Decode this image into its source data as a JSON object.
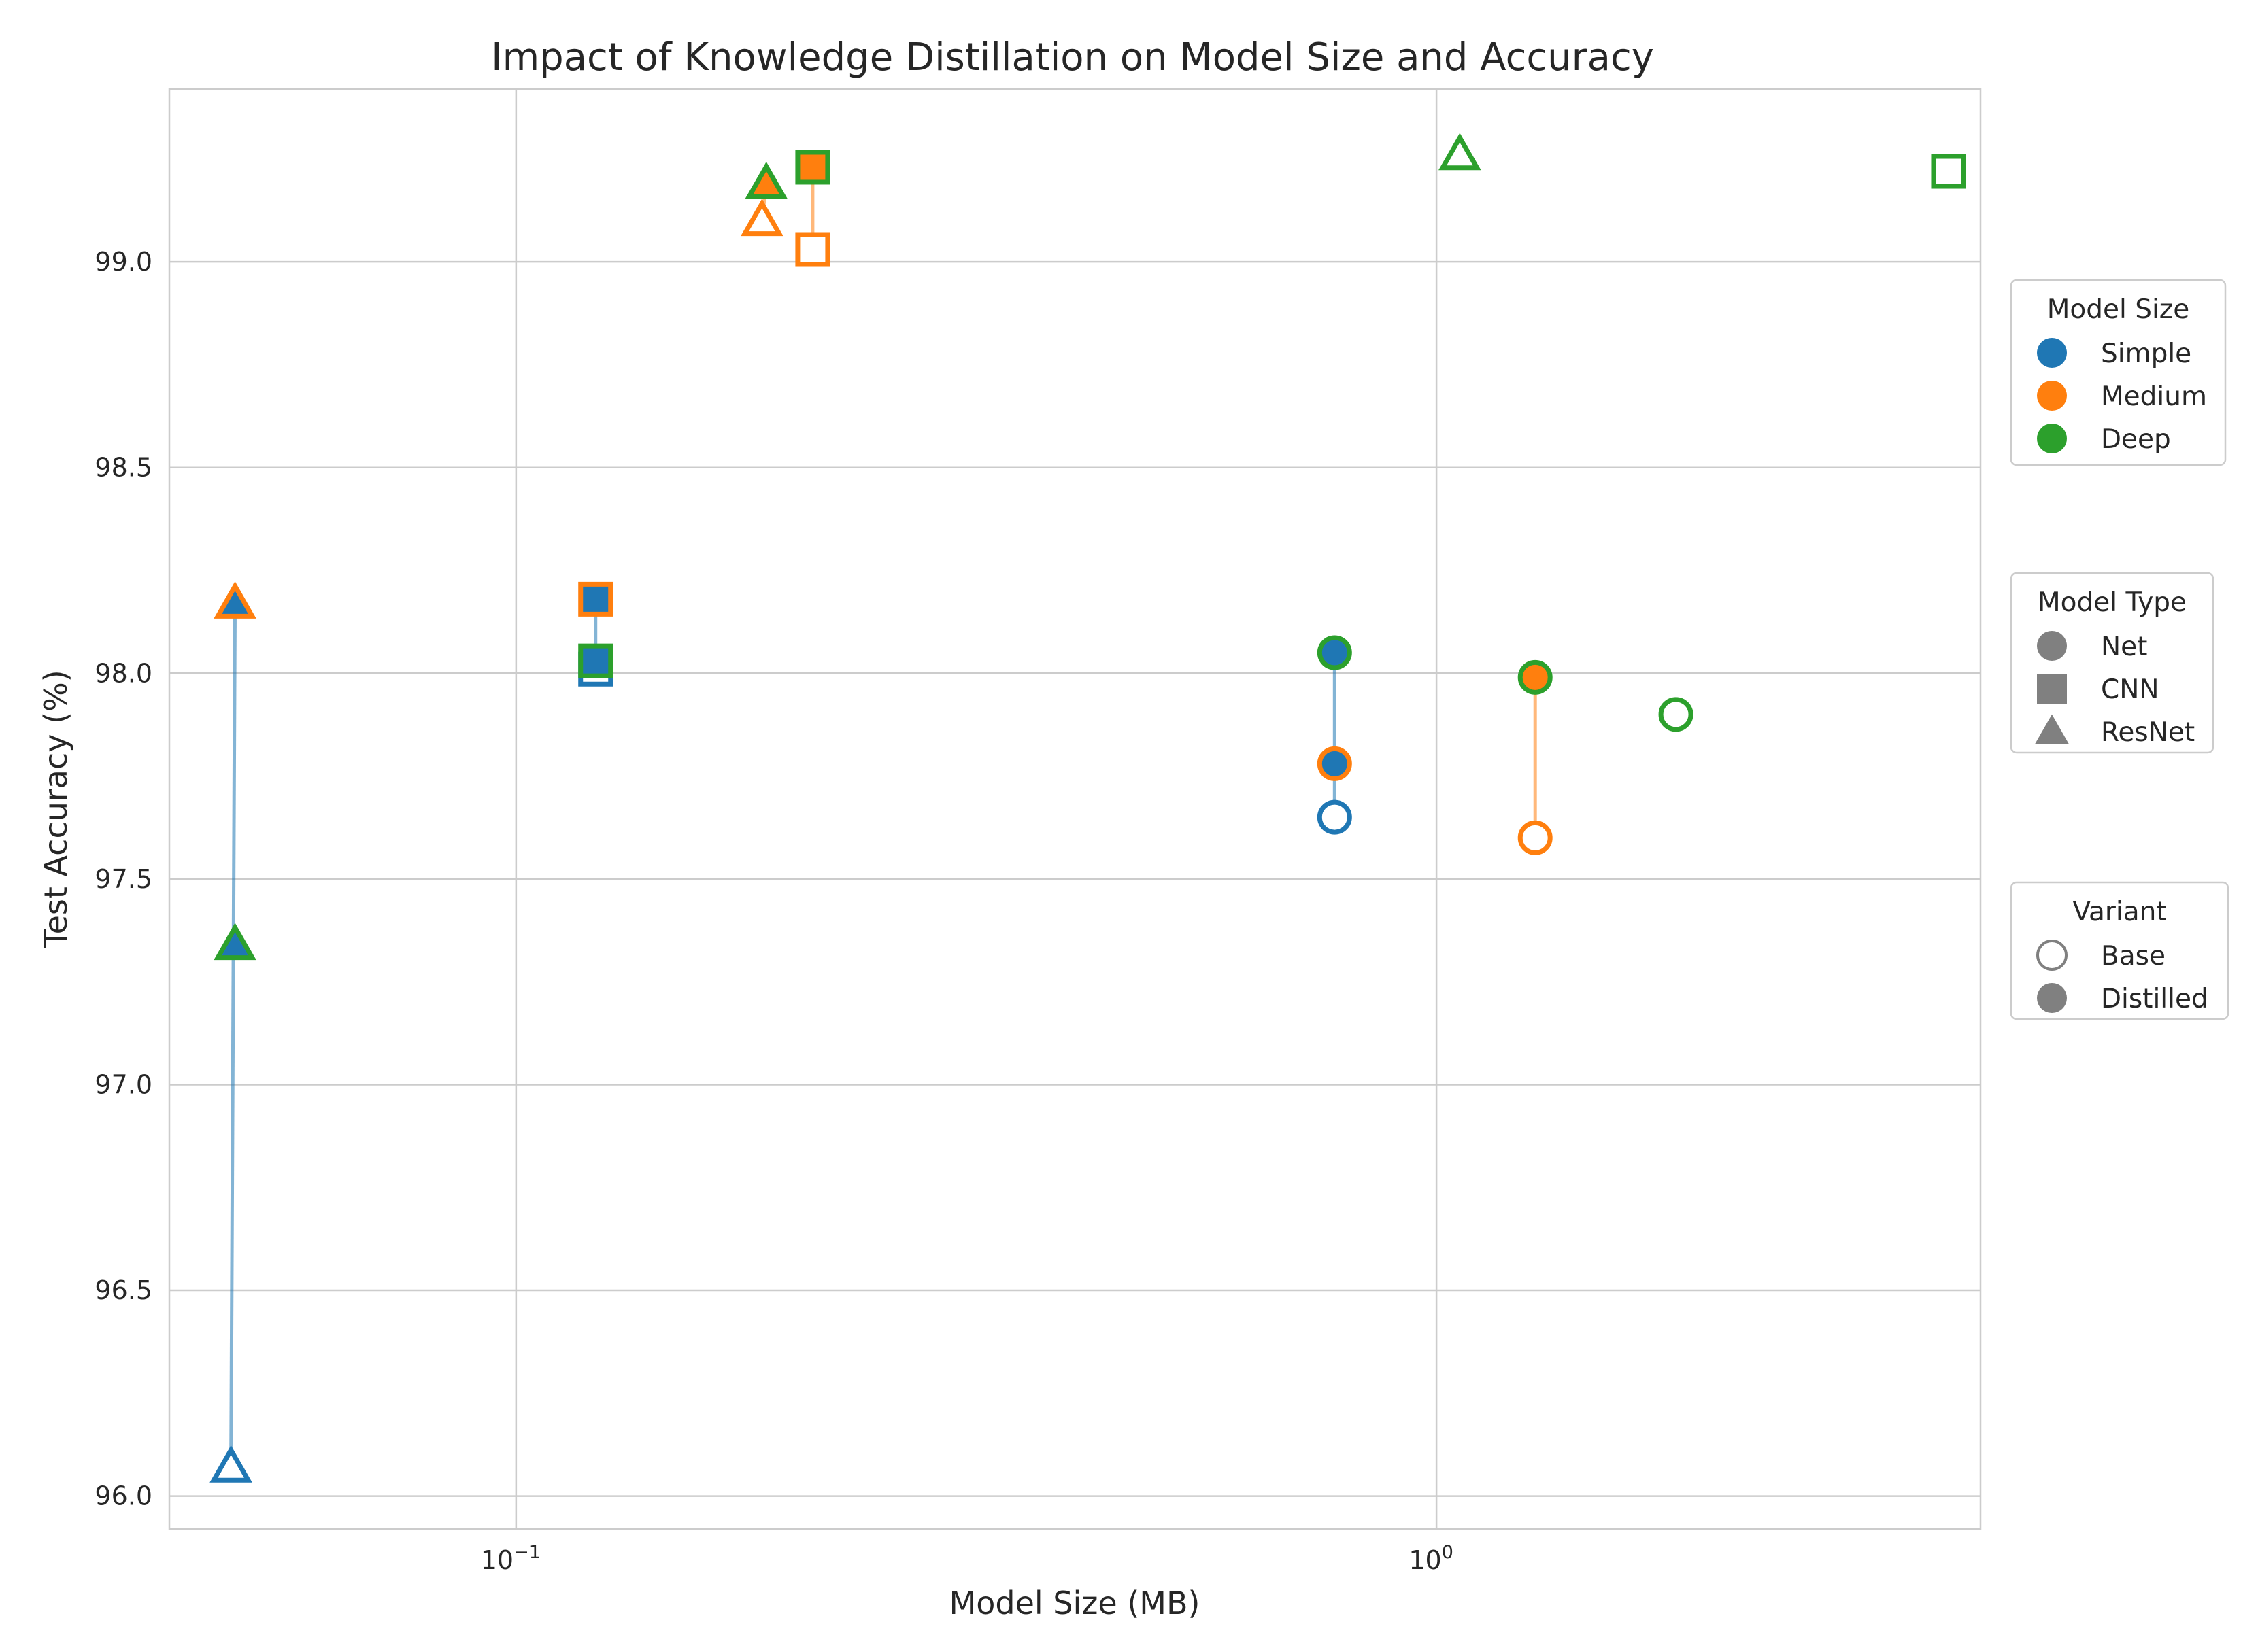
{
  "chart_data": {
    "type": "scatter",
    "title": "Impact of Knowledge Distillation on Model Size and Accuracy",
    "xlabel": "Model Size (MB)",
    "ylabel": "Test Accuracy (%)",
    "xscale": "log",
    "xlim": [
      0.042,
      3.9
    ],
    "ylim": [
      95.92,
      99.42
    ],
    "xticks": [
      {
        "value": 0.1,
        "base": "10",
        "exp": "−1"
      },
      {
        "value": 1,
        "base": "10",
        "exp": "0"
      }
    ],
    "yticks": [
      96.0,
      96.5,
      97.0,
      97.5,
      98.0,
      98.5,
      99.0
    ],
    "yticklabels": [
      "96.0",
      "96.5",
      "97.0",
      "97.5",
      "98.0",
      "98.5",
      "99.0"
    ],
    "grid": true,
    "colors": {
      "Simple": "#1f77b4",
      "Medium": "#ff7f0e",
      "Deep": "#2ca02c"
    },
    "points": [
      {
        "size": "Simple",
        "type": "Net",
        "variant": "Base",
        "x": 0.775,
        "y": 97.65
      },
      {
        "size": "Simple",
        "type": "Net",
        "variant": "Distilled",
        "x": 0.775,
        "y": 98.05,
        "teacher": "Deep"
      },
      {
        "size": "Simple",
        "type": "Net",
        "variant": "Distilled",
        "x": 0.775,
        "y": 97.78,
        "teacher": "Medium"
      },
      {
        "size": "Medium",
        "type": "Net",
        "variant": "Base",
        "x": 1.28,
        "y": 97.6
      },
      {
        "size": "Medium",
        "type": "Net",
        "variant": "Distilled",
        "x": 1.28,
        "y": 97.99,
        "teacher": "Deep"
      },
      {
        "size": "Deep",
        "type": "Net",
        "variant": "Base",
        "x": 1.82,
        "y": 97.9
      },
      {
        "size": "Simple",
        "type": "CNN",
        "variant": "Base",
        "x": 0.122,
        "y": 98.01
      },
      {
        "size": "Simple",
        "type": "CNN",
        "variant": "Distilled",
        "x": 0.122,
        "y": 98.18,
        "teacher": "Medium"
      },
      {
        "size": "Simple",
        "type": "CNN",
        "variant": "Distilled",
        "x": 0.122,
        "y": 98.03,
        "teacher": "Deep"
      },
      {
        "size": "Medium",
        "type": "CNN",
        "variant": "Base",
        "x": 0.21,
        "y": 99.03
      },
      {
        "size": "Medium",
        "type": "CNN",
        "variant": "Distilled",
        "x": 0.21,
        "y": 99.23,
        "teacher": "Deep"
      },
      {
        "size": "Deep",
        "type": "CNN",
        "variant": "Base",
        "x": 3.6,
        "y": 99.22
      },
      {
        "size": "Simple",
        "type": "ResNet",
        "variant": "Base",
        "x": 0.049,
        "y": 96.07
      },
      {
        "size": "Simple",
        "type": "ResNet",
        "variant": "Distilled",
        "x": 0.0495,
        "y": 98.17,
        "teacher": "Medium"
      },
      {
        "size": "Simple",
        "type": "ResNet",
        "variant": "Distilled",
        "x": 0.0495,
        "y": 97.34,
        "teacher": "Deep"
      },
      {
        "size": "Medium",
        "type": "ResNet",
        "variant": "Base",
        "x": 0.185,
        "y": 99.1
      },
      {
        "size": "Medium",
        "type": "ResNet",
        "variant": "Distilled",
        "x": 0.187,
        "y": 99.19,
        "teacher": "Deep"
      },
      {
        "size": "Deep",
        "type": "ResNet",
        "variant": "Base",
        "x": 1.06,
        "y": 99.26
      }
    ],
    "arrows": [
      {
        "color": "Simple",
        "from": [
          0.775,
          97.65
        ],
        "to": [
          0.775,
          98.05
        ]
      },
      {
        "color": "Medium",
        "from": [
          1.28,
          97.6
        ],
        "to": [
          1.28,
          97.99
        ]
      },
      {
        "color": "Simple",
        "from": [
          0.122,
          98.01
        ],
        "to": [
          0.122,
          98.18
        ]
      },
      {
        "color": "Medium",
        "from": [
          0.21,
          99.03
        ],
        "to": [
          0.21,
          99.23
        ]
      },
      {
        "color": "Simple",
        "from": [
          0.049,
          96.07
        ],
        "to": [
          0.0495,
          98.17
        ]
      },
      {
        "color": "Medium",
        "from": [
          0.185,
          99.1
        ],
        "to": [
          0.187,
          99.19
        ]
      }
    ],
    "legends": [
      {
        "title": "Model Size",
        "kind": "color",
        "items": [
          {
            "label": "Simple",
            "color": "#1f77b4"
          },
          {
            "label": "Medium",
            "color": "#ff7f0e"
          },
          {
            "label": "Deep",
            "color": "#2ca02c"
          }
        ]
      },
      {
        "title": "Model Type",
        "kind": "shape",
        "items": [
          {
            "label": "Net",
            "shape": "circle"
          },
          {
            "label": "CNN",
            "shape": "square"
          },
          {
            "label": "ResNet",
            "shape": "triangle"
          }
        ]
      },
      {
        "title": "Variant",
        "kind": "variant",
        "items": [
          {
            "label": "Base",
            "fill": "hollow"
          },
          {
            "label": "Distilled",
            "fill": "solid"
          }
        ]
      }
    ],
    "legend_placement": "right"
  }
}
